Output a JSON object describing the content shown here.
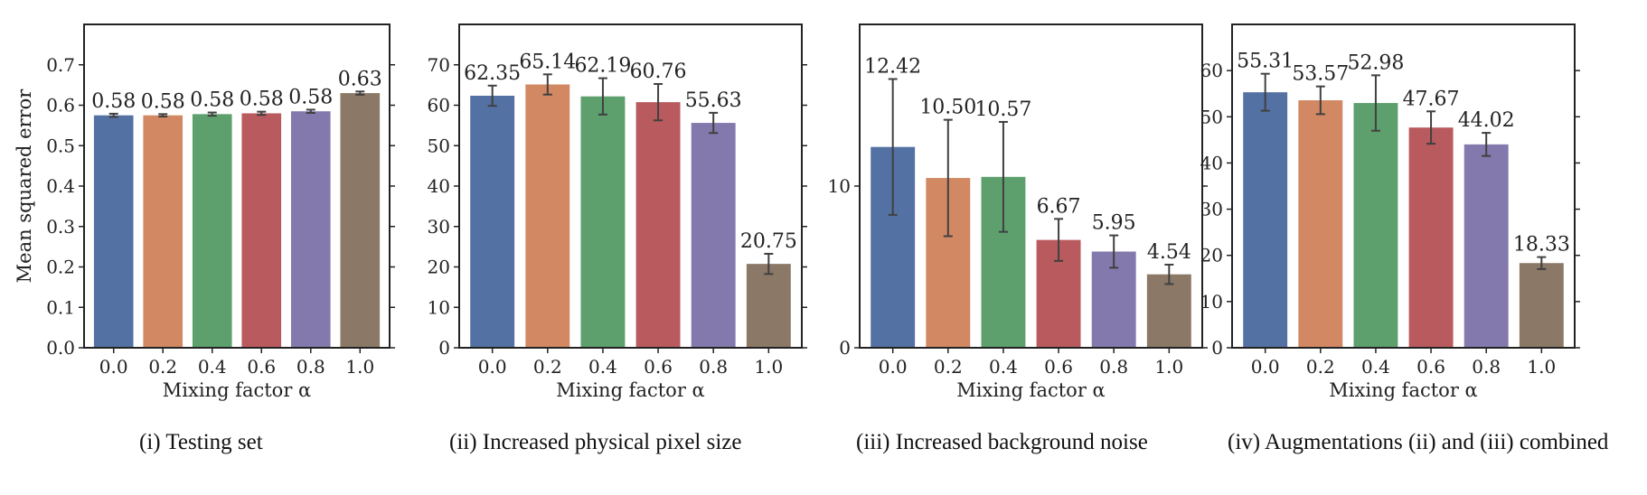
{
  "chart_data": [
    {
      "type": "bar",
      "caption": "(i) Testing set",
      "categories": [
        "0.0",
        "0.2",
        "0.4",
        "0.6",
        "0.8",
        "1.0"
      ],
      "values": [
        0.575,
        0.575,
        0.578,
        0.58,
        0.585,
        0.63
      ],
      "errors": [
        0.004,
        0.003,
        0.004,
        0.004,
        0.004,
        0.004
      ],
      "labels": [
        "0.58",
        "0.58",
        "0.58",
        "0.58",
        "0.58",
        "0.63"
      ],
      "xlabel": "Mixing factor α",
      "ylabel": "Mean squared error",
      "ylim": [
        0,
        0.8
      ],
      "yticks": [
        0.0,
        0.1,
        0.2,
        0.3,
        0.4,
        0.5,
        0.6,
        0.7
      ],
      "ytick_labels": [
        "0.0",
        "0.1",
        "0.2",
        "0.3",
        "0.4",
        "0.5",
        "0.6",
        "0.7"
      ]
    },
    {
      "type": "bar",
      "caption": "(ii) Increased physical pixel size",
      "categories": [
        "0.0",
        "0.2",
        "0.4",
        "0.6",
        "0.8",
        "1.0"
      ],
      "values": [
        62.35,
        65.14,
        62.19,
        60.76,
        55.63,
        20.75
      ],
      "errors": [
        2.5,
        2.5,
        4.5,
        4.5,
        2.5,
        2.5
      ],
      "labels": [
        "62.35",
        "65.14",
        "62.19",
        "60.76",
        "55.63",
        "20.75"
      ],
      "xlabel": "Mixing factor α",
      "ylabel": "",
      "ylim": [
        0,
        80
      ],
      "yticks": [
        0,
        10,
        20,
        30,
        40,
        50,
        60,
        70
      ],
      "ytick_labels": [
        "0",
        "10",
        "20",
        "30",
        "40",
        "50",
        "60",
        "70"
      ]
    },
    {
      "type": "bar",
      "caption": "(iii) Increased background noise",
      "categories": [
        "0.0",
        "0.2",
        "0.4",
        "0.6",
        "0.8",
        "1.0"
      ],
      "values": [
        12.42,
        10.5,
        10.57,
        6.67,
        5.95,
        4.54
      ],
      "errors": [
        4.2,
        3.6,
        3.4,
        1.3,
        1.0,
        0.6
      ],
      "labels": [
        "12.42",
        "10.50",
        "10.57",
        "6.67",
        "5.95",
        "4.54"
      ],
      "xlabel": "Mixing factor α",
      "ylabel": "",
      "ylim": [
        0,
        20
      ],
      "yticks": [
        0,
        10
      ],
      "ytick_labels": [
        "0",
        "10"
      ]
    },
    {
      "type": "bar",
      "caption": "(iv) Augmentations (ii) and (iii) combined",
      "categories": [
        "0.0",
        "0.2",
        "0.4",
        "0.6",
        "0.8",
        "1.0"
      ],
      "values": [
        55.31,
        53.57,
        52.98,
        47.67,
        44.02,
        18.33
      ],
      "errors": [
        4.0,
        3.0,
        6.0,
        3.5,
        2.5,
        1.3
      ],
      "labels": [
        "55.31",
        "53.57",
        "52.98",
        "47.67",
        "44.02",
        "18.33"
      ],
      "xlabel": "Mixing factor α",
      "ylabel": "",
      "ylim": [
        0,
        70
      ],
      "yticks": [
        0,
        10,
        20,
        30,
        40,
        50,
        60
      ],
      "ytick_labels": [
        "0",
        "10",
        "20",
        "30",
        "40",
        "50",
        "60"
      ]
    }
  ],
  "colors": [
    "#5471a3",
    "#d18863",
    "#5da06e",
    "#b85a5e",
    "#8379ac",
    "#8b7866"
  ],
  "errorbar_color": "#404040",
  "axis_color": "#222222"
}
